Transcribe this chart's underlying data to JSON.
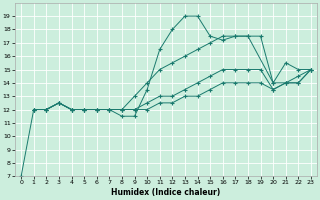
{
  "xlabel": "Humidex (Indice chaleur)",
  "background_color": "#cceedd",
  "line_color": "#1a7a6e",
  "xlim": [
    -0.5,
    23.5
  ],
  "ylim": [
    7,
    20
  ],
  "xticks": [
    0,
    1,
    2,
    3,
    4,
    5,
    6,
    7,
    8,
    9,
    10,
    11,
    12,
    13,
    14,
    15,
    16,
    17,
    18,
    19,
    20,
    21,
    22,
    23
  ],
  "yticks": [
    7,
    8,
    9,
    10,
    11,
    12,
    13,
    14,
    15,
    16,
    17,
    18,
    19
  ],
  "lines": [
    {
      "x": [
        0,
        1,
        2,
        3,
        4,
        5,
        6,
        7,
        8,
        9,
        10,
        11,
        12,
        13,
        14,
        15,
        16,
        17,
        18,
        20,
        21,
        22,
        23
      ],
      "y": [
        7,
        12,
        12,
        12.5,
        12,
        12,
        12,
        12,
        11.5,
        11.5,
        13.5,
        16.5,
        18,
        19,
        19,
        17.5,
        17.2,
        17.5,
        17.5,
        14,
        15.5,
        15,
        15
      ]
    },
    {
      "x": [
        1,
        2,
        3,
        4,
        5,
        6,
        7,
        8,
        9,
        10,
        11,
        12,
        13,
        14,
        15,
        16,
        17,
        18,
        19,
        20,
        21,
        22,
        23
      ],
      "y": [
        12,
        12,
        12.5,
        12,
        12,
        12,
        12,
        12,
        13,
        14,
        15,
        15.5,
        16,
        16.5,
        17,
        17.5,
        17.5,
        17.5,
        17.5,
        14,
        14,
        14.5,
        15
      ]
    },
    {
      "x": [
        1,
        2,
        3,
        4,
        5,
        6,
        7,
        8,
        9,
        10,
        11,
        12,
        13,
        14,
        15,
        16,
        17,
        18,
        19,
        20,
        21,
        22,
        23
      ],
      "y": [
        12,
        12,
        12.5,
        12,
        12,
        12,
        12,
        12,
        12,
        12.5,
        13,
        13,
        13.5,
        14,
        14.5,
        15,
        15,
        15,
        15,
        13.5,
        14,
        14,
        15
      ]
    },
    {
      "x": [
        1,
        2,
        3,
        4,
        5,
        6,
        7,
        8,
        9,
        10,
        11,
        12,
        13,
        14,
        15,
        16,
        17,
        18,
        19,
        20,
        21,
        22,
        23
      ],
      "y": [
        12,
        12,
        12.5,
        12,
        12,
        12,
        12,
        12,
        12,
        12,
        12.5,
        12.5,
        13,
        13,
        13.5,
        14,
        14,
        14,
        14,
        13.5,
        14,
        14,
        15
      ]
    }
  ]
}
